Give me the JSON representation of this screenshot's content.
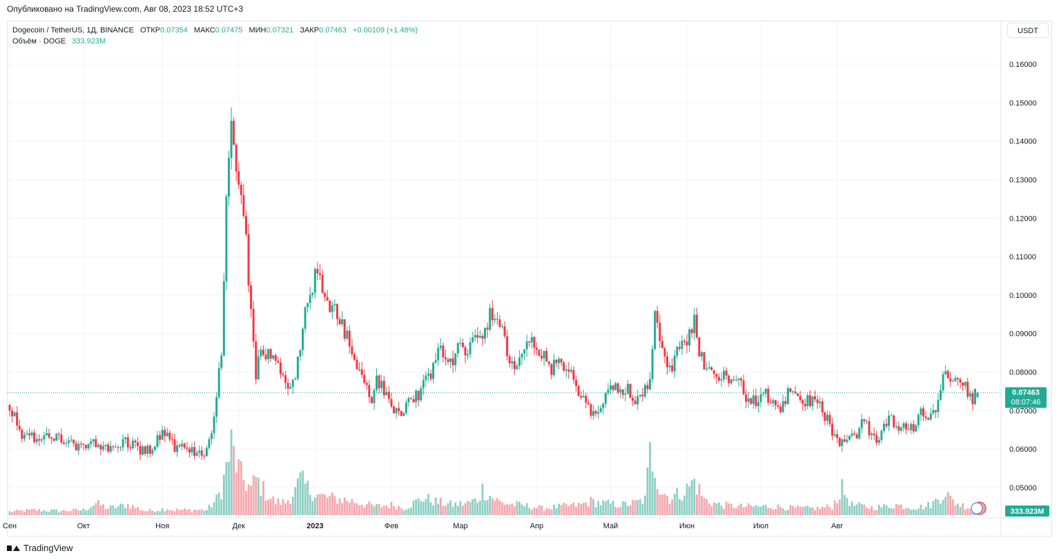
{
  "header": {
    "published": "Опубликовано на TradingView.com, Авг 08, 2023 18:52 UTC+3"
  },
  "legend": {
    "symbol": "Dogecoin / TetherUS, 1Д, BINANCE",
    "open_label": "ОТКР",
    "open": "0.07354",
    "high_label": "МАКС",
    "high": "0.07475",
    "low_label": "МИН",
    "low": "0.07321",
    "close_label": "ЗАКР",
    "close": "0.07463",
    "change": "+0.00109 (+1.48%)",
    "volume_label": "Объём · DOGE",
    "volume": "333.923M"
  },
  "currency": "USDT",
  "footer": {
    "brand": "TradingView"
  },
  "colors": {
    "up": "#22ab94",
    "down": "#f23645",
    "up_vol": "#8dcfc3",
    "down_vol": "#f5a6ad",
    "grid": "#f0f3fa"
  },
  "chart_data": {
    "type": "candlestick",
    "y_range": [
      0.045,
      0.163
    ],
    "y_ticks": [
      "0.16000",
      "0.15000",
      "0.14000",
      "0.13000",
      "0.12000",
      "0.11000",
      "0.10000",
      "0.09000",
      "0.08000",
      "0.07000",
      "0.06000",
      "0.05000"
    ],
    "x_labels": [
      "Сен",
      "Окт",
      "Ноя",
      "Дек",
      "2023",
      "Фев",
      "Мар",
      "Апр",
      "Май",
      "Июн",
      "Июл",
      "Авг"
    ],
    "last_price": "0.07463",
    "countdown": "08:07:46",
    "last_volume": "333.923M",
    "close_path": [
      [
        0,
        0.0715
      ],
      [
        5,
        0.064
      ],
      [
        12,
        0.0625
      ],
      [
        20,
        0.063
      ],
      [
        28,
        0.06
      ],
      [
        34,
        0.0625
      ],
      [
        40,
        0.0595
      ],
      [
        47,
        0.062
      ],
      [
        53,
        0.06
      ],
      [
        58,
        0.0595
      ],
      [
        62,
        0.065
      ],
      [
        66,
        0.061
      ],
      [
        72,
        0.0595
      ],
      [
        78,
        0.059
      ],
      [
        80,
        0.06
      ],
      [
        82,
        0.065
      ],
      [
        84,
        0.075
      ],
      [
        86,
        0.085
      ],
      [
        88,
        0.123
      ],
      [
        90,
        0.145
      ],
      [
        92,
        0.135
      ],
      [
        94,
        0.125
      ],
      [
        96,
        0.115
      ],
      [
        98,
        0.095
      ],
      [
        100,
        0.078
      ],
      [
        102,
        0.088
      ],
      [
        104,
        0.085
      ],
      [
        108,
        0.083
      ],
      [
        112,
        0.078
      ],
      [
        114,
        0.076
      ],
      [
        116,
        0.08
      ],
      [
        118,
        0.085
      ],
      [
        120,
        0.095
      ],
      [
        122,
        0.1
      ],
      [
        124,
        0.105
      ],
      [
        126,
        0.104
      ],
      [
        128,
        0.102
      ],
      [
        130,
        0.098
      ],
      [
        134,
        0.094
      ],
      [
        137,
        0.089
      ],
      [
        141,
        0.081
      ],
      [
        144,
        0.078
      ],
      [
        147,
        0.073
      ],
      [
        149,
        0.078
      ],
      [
        153,
        0.074
      ],
      [
        156,
        0.07
      ],
      [
        159,
        0.069
      ],
      [
        161,
        0.072
      ],
      [
        164,
        0.073
      ],
      [
        168,
        0.076
      ],
      [
        171,
        0.08
      ],
      [
        174,
        0.086
      ],
      [
        177,
        0.083
      ],
      [
        180,
        0.083
      ],
      [
        183,
        0.087
      ],
      [
        186,
        0.086
      ],
      [
        189,
        0.089
      ],
      [
        192,
        0.09
      ],
      [
        195,
        0.095
      ],
      [
        198,
        0.093
      ],
      [
        200,
        0.09
      ],
      [
        203,
        0.082
      ],
      [
        205,
        0.081
      ],
      [
        208,
        0.086
      ],
      [
        211,
        0.088
      ],
      [
        214,
        0.086
      ],
      [
        217,
        0.084
      ],
      [
        220,
        0.081
      ],
      [
        223,
        0.082
      ],
      [
        227,
        0.081
      ],
      [
        230,
        0.075
      ],
      [
        233,
        0.073
      ],
      [
        236,
        0.069
      ],
      [
        239,
        0.07
      ],
      [
        242,
        0.073
      ],
      [
        245,
        0.076
      ],
      [
        248,
        0.074
      ],
      [
        251,
        0.076
      ],
      [
        254,
        0.073
      ],
      [
        257,
        0.074
      ],
      [
        260,
        0.079
      ],
      [
        262,
        0.095
      ],
      [
        264,
        0.09
      ],
      [
        266,
        0.084
      ],
      [
        269,
        0.082
      ],
      [
        272,
        0.086
      ],
      [
        275,
        0.089
      ],
      [
        278,
        0.093
      ],
      [
        280,
        0.086
      ],
      [
        283,
        0.08
      ],
      [
        286,
        0.079
      ],
      [
        289,
        0.08
      ],
      [
        292,
        0.079
      ],
      [
        295,
        0.078
      ],
      [
        298,
        0.075
      ],
      [
        301,
        0.072
      ],
      [
        304,
        0.073
      ],
      [
        307,
        0.074
      ],
      [
        310,
        0.072
      ],
      [
        313,
        0.071
      ],
      [
        316,
        0.074
      ],
      [
        319,
        0.073
      ],
      [
        322,
        0.072
      ],
      [
        325,
        0.073
      ],
      [
        328,
        0.072
      ],
      [
        330,
        0.07
      ],
      [
        332,
        0.068
      ],
      [
        334,
        0.064
      ],
      [
        337,
        0.061
      ],
      [
        340,
        0.062
      ],
      [
        343,
        0.063
      ],
      [
        346,
        0.067
      ],
      [
        349,
        0.065
      ],
      [
        352,
        0.061
      ],
      [
        355,
        0.066
      ],
      [
        358,
        0.068
      ],
      [
        361,
        0.066
      ],
      [
        364,
        0.065
      ],
      [
        367,
        0.066
      ],
      [
        370,
        0.069
      ],
      [
        373,
        0.069
      ],
      [
        376,
        0.071
      ],
      [
        378,
        0.076
      ],
      [
        380,
        0.081
      ],
      [
        382,
        0.079
      ],
      [
        384,
        0.077
      ],
      [
        386,
        0.078
      ],
      [
        388,
        0.076
      ],
      [
        390,
        0.073
      ],
      [
        392,
        0.074
      ],
      [
        393,
        0.07463
      ]
    ],
    "volume_path": [
      [
        0,
        4
      ],
      [
        10,
        6
      ],
      [
        20,
        5
      ],
      [
        30,
        6
      ],
      [
        35,
        14
      ],
      [
        40,
        8
      ],
      [
        48,
        12
      ],
      [
        55,
        5
      ],
      [
        60,
        6
      ],
      [
        64,
        8
      ],
      [
        66,
        6
      ],
      [
        70,
        6
      ],
      [
        80,
        6
      ],
      [
        84,
        18
      ],
      [
        86,
        30
      ],
      [
        88,
        55
      ],
      [
        90,
        80
      ],
      [
        92,
        60
      ],
      [
        94,
        45
      ],
      [
        98,
        30
      ],
      [
        100,
        42
      ],
      [
        104,
        25
      ],
      [
        108,
        15
      ],
      [
        112,
        15
      ],
      [
        116,
        28
      ],
      [
        118,
        40
      ],
      [
        122,
        28
      ],
      [
        126,
        22
      ],
      [
        130,
        20
      ],
      [
        136,
        18
      ],
      [
        140,
        16
      ],
      [
        148,
        10
      ],
      [
        152,
        11
      ],
      [
        156,
        12
      ],
      [
        160,
        8
      ],
      [
        164,
        14
      ],
      [
        168,
        20
      ],
      [
        174,
        15
      ],
      [
        180,
        12
      ],
      [
        186,
        14
      ],
      [
        190,
        18
      ],
      [
        192,
        30
      ],
      [
        196,
        20
      ],
      [
        200,
        14
      ],
      [
        206,
        12
      ],
      [
        212,
        10
      ],
      [
        216,
        8
      ],
      [
        224,
        10
      ],
      [
        232,
        12
      ],
      [
        236,
        16
      ],
      [
        240,
        14
      ],
      [
        248,
        12
      ],
      [
        254,
        14
      ],
      [
        258,
        18
      ],
      [
        260,
        70
      ],
      [
        262,
        60
      ],
      [
        264,
        30
      ],
      [
        268,
        20
      ],
      [
        272,
        25
      ],
      [
        275,
        30
      ],
      [
        278,
        40
      ],
      [
        282,
        18
      ],
      [
        288,
        12
      ],
      [
        296,
        10
      ],
      [
        304,
        10
      ],
      [
        310,
        10
      ],
      [
        320,
        8
      ],
      [
        328,
        8
      ],
      [
        334,
        10
      ],
      [
        338,
        30
      ],
      [
        342,
        12
      ],
      [
        350,
        9
      ],
      [
        356,
        10
      ],
      [
        360,
        12
      ],
      [
        364,
        10
      ],
      [
        368,
        9
      ],
      [
        372,
        10
      ],
      [
        375,
        14
      ],
      [
        378,
        22
      ],
      [
        380,
        28
      ],
      [
        382,
        18
      ],
      [
        386,
        12
      ],
      [
        390,
        9
      ],
      [
        393,
        8
      ]
    ]
  }
}
